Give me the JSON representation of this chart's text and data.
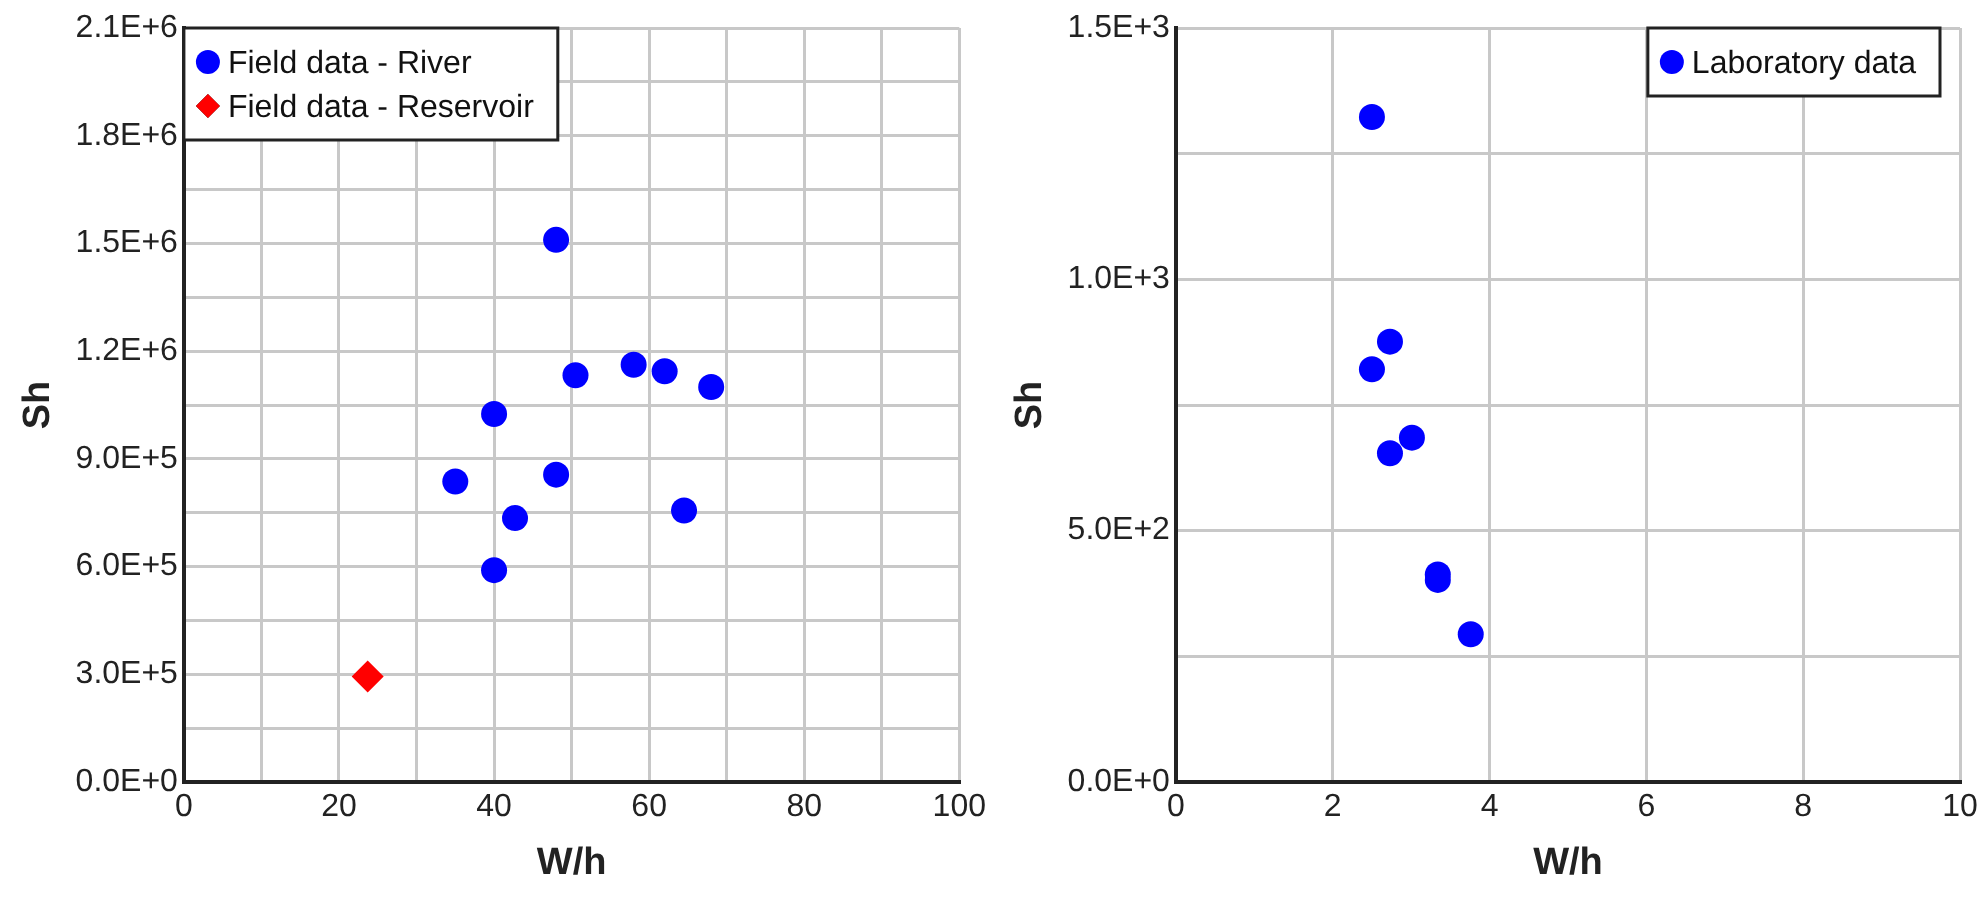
{
  "chart_data": [
    {
      "type": "scatter",
      "xlabel": "W/h",
      "ylabel": "Sh",
      "grid": true,
      "legend": "top left",
      "xlim": [
        0,
        100
      ],
      "ylim": [
        0,
        2100000
      ],
      "xticks": [
        0,
        {
          "value": 10,
          "label": null
        },
        20,
        {
          "value": 30,
          "label": null
        },
        40,
        {
          "value": 50,
          "label": null
        },
        60,
        {
          "value": 70,
          "label": null
        },
        80,
        {
          "value": 90,
          "label": null
        },
        100
      ],
      "yticks": [
        {
          "value": 0,
          "label": "0.0E+0"
        },
        {
          "value": 150000,
          "label": null
        },
        {
          "value": 300000,
          "label": "3.0E+5"
        },
        {
          "value": 450000,
          "label": null
        },
        {
          "value": 600000,
          "label": "6.0E+5"
        },
        {
          "value": 750000,
          "label": null
        },
        {
          "value": 900000,
          "label": "9.0E+5"
        },
        {
          "value": 1050000,
          "label": null
        },
        {
          "value": 1200000,
          "label": "1.2E+6"
        },
        {
          "value": 1350000,
          "label": null
        },
        {
          "value": 1500000,
          "label": "1.5E+6"
        },
        {
          "value": 1650000,
          "label": null
        },
        {
          "value": 1800000,
          "label": "1.8E+6"
        },
        {
          "value": 1950000,
          "label": null
        },
        {
          "value": 2100000,
          "label": "2.1E+6"
        }
      ],
      "series": [
        {
          "name": "Field data - River",
          "color": "#0000ff",
          "marker": "circle",
          "x": [
            48,
            50.5,
            58,
            62,
            68,
            40,
            35,
            48,
            42.7,
            64.5,
            40
          ],
          "values": [
            1510000,
            1133000,
            1162000,
            1144000,
            1100000,
            1025000,
            837000,
            856000,
            735000,
            756000,
            590000
          ]
        },
        {
          "name": "Field data - Reservoir",
          "color": "#ff0000",
          "marker": "diamond",
          "x": [
            23.7
          ],
          "values": [
            294000
          ]
        }
      ]
    },
    {
      "type": "scatter",
      "xlabel": "W/h",
      "ylabel": "Sh",
      "grid": true,
      "legend": "top right",
      "xlim": [
        0,
        10
      ],
      "ylim": [
        0,
        1500
      ],
      "xticks": [
        0,
        2,
        4,
        6,
        8,
        10
      ],
      "yticks": [
        {
          "value": 0,
          "label": "0.0E+0"
        },
        {
          "value": 250,
          "label": null
        },
        {
          "value": 500,
          "label": "5.0E+2"
        },
        {
          "value": 750,
          "label": null
        },
        {
          "value": 1000,
          "label": "1.0E+3"
        },
        {
          "value": 1250,
          "label": null
        },
        {
          "value": 1500,
          "label": "1.5E+3"
        }
      ],
      "series": [
        {
          "name": "Laboratory data",
          "color": "#0000ff",
          "marker": "circle",
          "x": [
            2.5,
            2.73,
            2.5,
            3.01,
            2.73,
            3.34,
            3.34,
            3.76
          ],
          "values": [
            1323,
            876,
            821,
            685,
            654,
            413,
            402,
            294
          ]
        }
      ]
    }
  ]
}
